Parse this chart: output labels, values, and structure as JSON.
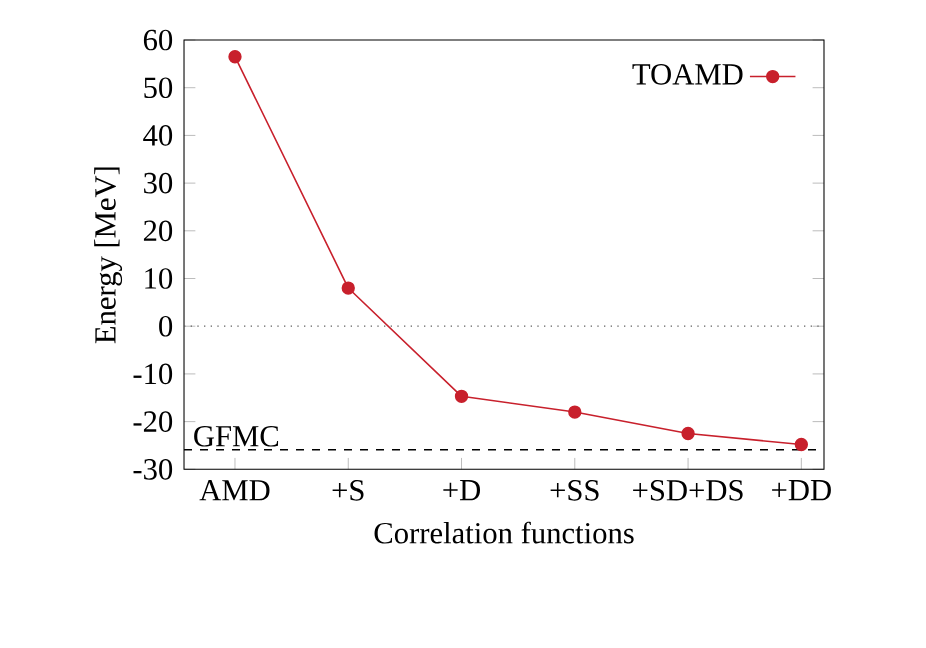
{
  "chart_data": {
    "type": "line",
    "xlabel": "Correlation functions",
    "ylabel": "Energy [MeV]",
    "categories": [
      "AMD",
      "+S",
      "+D",
      "+SS",
      "+SD+DS",
      "+DD"
    ],
    "series": [
      {
        "name": "TOAMD",
        "color": "#c8202c",
        "values": [
          56.5,
          8,
          -14.7,
          -18,
          -22.5,
          -24.8
        ]
      }
    ],
    "ylim": [
      -30,
      60
    ],
    "yticks": [
      -30,
      -20,
      -10,
      0,
      10,
      20,
      30,
      40,
      50,
      60
    ],
    "legend": "top right",
    "marker": "circle",
    "line_style": "solid",
    "ref_lines": [
      {
        "axis": "y",
        "value": 0,
        "line_style": "dotted",
        "color": "#606060"
      },
      {
        "axis": "y",
        "value": -25.9,
        "label": "GFMC",
        "line_style": "dashed",
        "color": "#000000"
      }
    ]
  }
}
